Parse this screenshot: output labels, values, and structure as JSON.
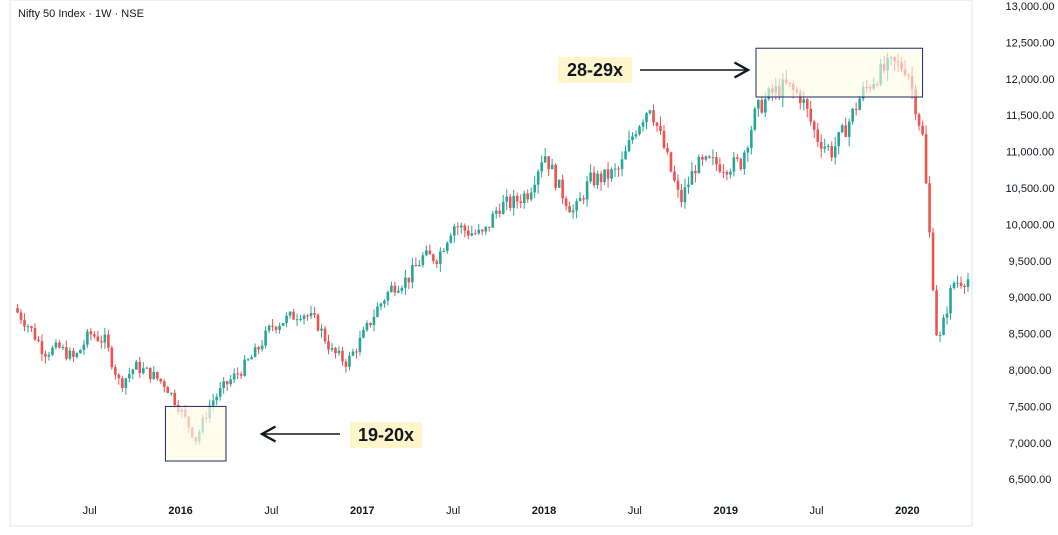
{
  "header": {
    "title": "Nifty 50 Index · 1W · NSE"
  },
  "chart_data": {
    "type": "candlestick",
    "title": "Nifty 50 Index · 1W · NSE",
    "ylim": [
      6300,
      13000
    ],
    "x_range": [
      "2015-02",
      "2020-05"
    ],
    "y_ticks": [
      "13,000.00",
      "12,500.00",
      "12,000.00",
      "11,500.00",
      "11,000.00",
      "10,500.00",
      "10,000.00",
      "9,500.00",
      "9,000.00",
      "8,500.00",
      "8,000.00",
      "7,500.00",
      "7,000.00",
      "6,500.00"
    ],
    "y_tick_values": [
      13000,
      12500,
      12000,
      11500,
      11000,
      10500,
      10000,
      9500,
      9000,
      8500,
      8000,
      7500,
      7000,
      6500
    ],
    "x_ticks": [
      {
        "label": "Jul",
        "date": "2015-07"
      },
      {
        "label": "2016",
        "date": "2016-01",
        "bold": true
      },
      {
        "label": "Jul",
        "date": "2016-07"
      },
      {
        "label": "2017",
        "date": "2017-01",
        "bold": true
      },
      {
        "label": "Jul",
        "date": "2017-07"
      },
      {
        "label": "2018",
        "date": "2018-01",
        "bold": true
      },
      {
        "label": "Jul",
        "date": "2018-07"
      },
      {
        "label": "2019",
        "date": "2019-01",
        "bold": true
      },
      {
        "label": "Jul",
        "date": "2019-07"
      },
      {
        "label": "2020",
        "date": "2020-01",
        "bold": true
      }
    ],
    "series": [
      {
        "date": "2015-02",
        "close": 8850
      },
      {
        "date": "2015-03",
        "close": 8600
      },
      {
        "date": "2015-04",
        "close": 8250
      },
      {
        "date": "2015-05",
        "close": 8300
      },
      {
        "date": "2015-06",
        "close": 8150
      },
      {
        "date": "2015-07",
        "close": 8500
      },
      {
        "date": "2015-08",
        "close": 8400
      },
      {
        "date": "2015-09",
        "close": 7800
      },
      {
        "date": "2015-10",
        "close": 8050
      },
      {
        "date": "2015-11",
        "close": 7950
      },
      {
        "date": "2015-12",
        "close": 7800
      },
      {
        "date": "2016-01",
        "close": 7450
      },
      {
        "date": "2016-02",
        "close": 7050
      },
      {
        "date": "2016-03",
        "close": 7550
      },
      {
        "date": "2016-04",
        "close": 7800
      },
      {
        "date": "2016-05",
        "close": 8000
      },
      {
        "date": "2016-06",
        "close": 8250
      },
      {
        "date": "2016-07",
        "close": 8600
      },
      {
        "date": "2016-08",
        "close": 8700
      },
      {
        "date": "2016-09",
        "close": 8800
      },
      {
        "date": "2016-10",
        "close": 8650
      },
      {
        "date": "2016-11",
        "close": 8250
      },
      {
        "date": "2016-12",
        "close": 8100
      },
      {
        "date": "2017-01",
        "close": 8450
      },
      {
        "date": "2017-02",
        "close": 8850
      },
      {
        "date": "2017-03",
        "close": 9150
      },
      {
        "date": "2017-04",
        "close": 9250
      },
      {
        "date": "2017-05",
        "close": 9550
      },
      {
        "date": "2017-06",
        "close": 9550
      },
      {
        "date": "2017-07",
        "close": 10000
      },
      {
        "date": "2017-08",
        "close": 9900
      },
      {
        "date": "2017-09",
        "close": 9850
      },
      {
        "date": "2017-10",
        "close": 10250
      },
      {
        "date": "2017-11",
        "close": 10300
      },
      {
        "date": "2017-12",
        "close": 10450
      },
      {
        "date": "2018-01",
        "close": 11000
      },
      {
        "date": "2018-02",
        "close": 10500
      },
      {
        "date": "2018-03",
        "close": 10150
      },
      {
        "date": "2018-04",
        "close": 10600
      },
      {
        "date": "2018-05",
        "close": 10650
      },
      {
        "date": "2018-06",
        "close": 10750
      },
      {
        "date": "2018-07",
        "close": 11300
      },
      {
        "date": "2018-08",
        "close": 11650
      },
      {
        "date": "2018-09",
        "close": 11000
      },
      {
        "date": "2018-10",
        "close": 10300
      },
      {
        "date": "2018-11",
        "close": 10800
      },
      {
        "date": "2018-12",
        "close": 10850
      },
      {
        "date": "2019-01",
        "close": 10800
      },
      {
        "date": "2019-02",
        "close": 10850
      },
      {
        "date": "2019-03",
        "close": 11550
      },
      {
        "date": "2019-04",
        "close": 11800
      },
      {
        "date": "2019-05",
        "close": 11900
      },
      {
        "date": "2019-06",
        "close": 11750
      },
      {
        "date": "2019-07",
        "close": 11200
      },
      {
        "date": "2019-08",
        "close": 11000
      },
      {
        "date": "2019-09",
        "close": 11350
      },
      {
        "date": "2019-10",
        "close": 11800
      },
      {
        "date": "2019-11",
        "close": 12050
      },
      {
        "date": "2019-12",
        "close": 12200
      },
      {
        "date": "2020-01",
        "close": 12150
      },
      {
        "date": "2020-02",
        "close": 11200
      },
      {
        "date": "2020-03",
        "close": 8300
      },
      {
        "date": "2020-04",
        "close": 9200
      },
      {
        "date": "2020-05",
        "close": 9250
      }
    ],
    "annotations": [
      {
        "label": "19-20x",
        "box": {
          "from": "2015-12",
          "to": "2016-04",
          "low": 6750,
          "high": 7500
        }
      },
      {
        "label": "28-29x",
        "box": {
          "from": "2019-03",
          "to": "2020-02",
          "low": 11750,
          "high": 12420
        }
      }
    ],
    "colors": {
      "up": "#26a69a",
      "down": "#ef5350",
      "box_fill": "#fffbe6",
      "box_stroke": "#1a2a6c",
      "label_bg": "#fff6cc"
    }
  }
}
